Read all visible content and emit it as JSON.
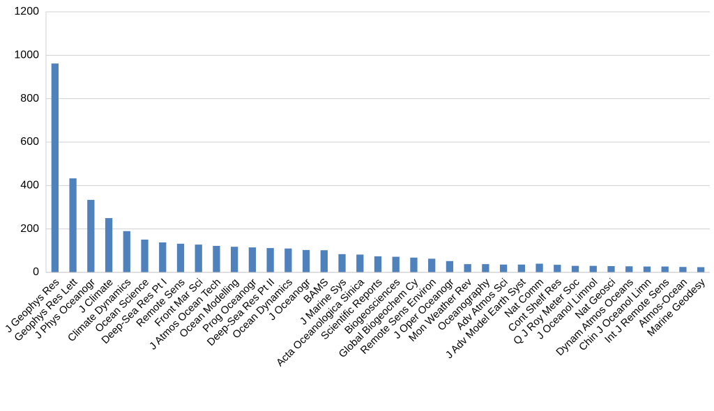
{
  "chart_data": {
    "type": "bar",
    "categories": [
      "J Geophys Res",
      "Geophys Res Lett",
      "J Phys Oceanogr",
      "J Climate",
      "Climate Dynamics",
      "Ocean Science",
      "Deep-Sea Res Pt I",
      "Remote Sens",
      "Front Mar Sci",
      "J Atmos Ocean Tech",
      "Ocean Modelling",
      "Prog Oceanogr",
      "Deep-Sea Res Pt II",
      "Ocean Dynamics",
      "J Oceanogr",
      "BAMS",
      "J Marine Sys",
      "Acta Oceanologica Sinica",
      "Scientific Reports",
      "Biogeosciences",
      "Global Biogeochem Cy",
      "Remote Sens Environ",
      "J Oper Oceanogr",
      "Mon Weather Rev",
      "Oceanography",
      "Adv Atmos Sci",
      "J Adv Model Earth Syst",
      "Nat Comm",
      "Cont Shelf Res",
      "Q J Roy Meter Soc",
      "J Oceanol Limnol",
      "Nat Geosci",
      "Dynam Atmos Oceans",
      "Chin J Oceanol Limn",
      "Int J Remote Sens",
      "Atmos-Ocean",
      "Marine Geodesy"
    ],
    "values": [
      962,
      433,
      334,
      250,
      190,
      151,
      138,
      132,
      128,
      122,
      118,
      115,
      112,
      110,
      103,
      102,
      84,
      82,
      74,
      72,
      68,
      63,
      52,
      38,
      38,
      36,
      36,
      40,
      35,
      30,
      30,
      29,
      28,
      27,
      27,
      25,
      24
    ],
    "color": "#4f81bd",
    "ylim": [
      0,
      1200
    ],
    "yticks": [
      0,
      200,
      400,
      600,
      800,
      1000,
      1200
    ],
    "grid": true
  }
}
